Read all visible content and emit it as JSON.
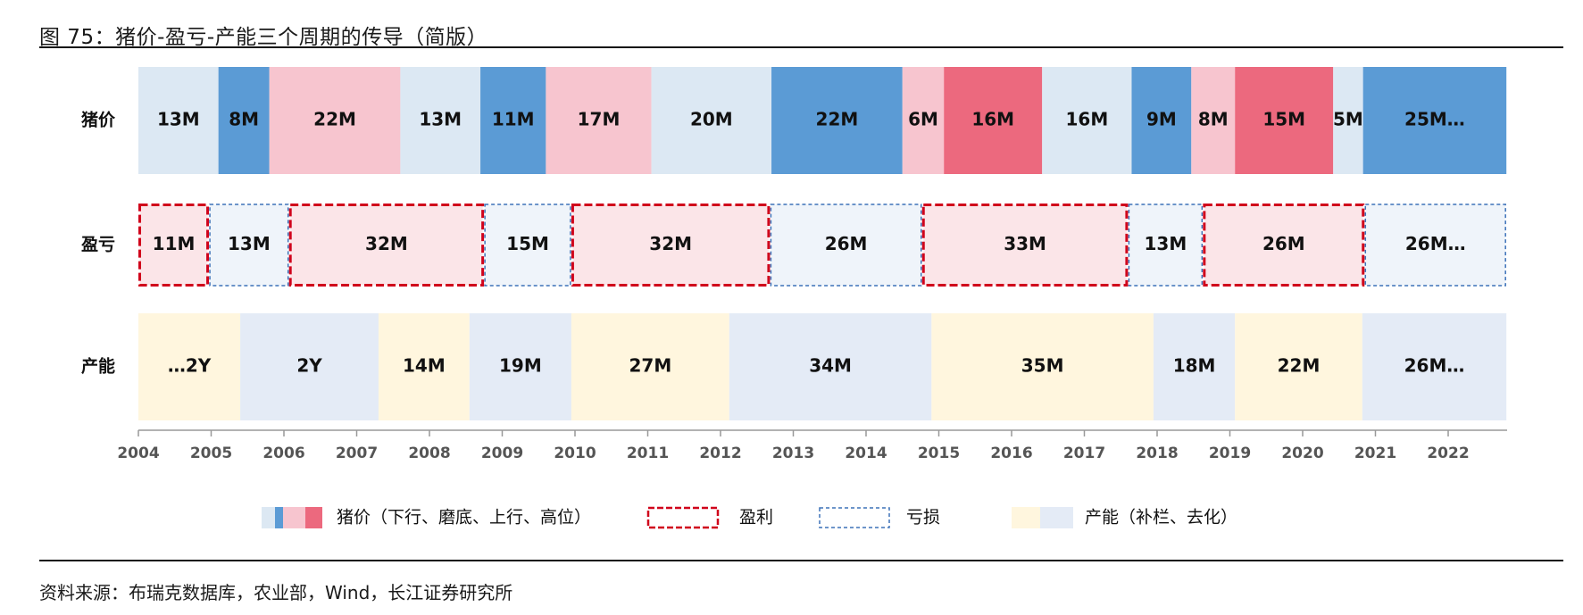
{
  "title": "图 75：猪价-盈亏-产能三个周期的传导（简版）",
  "source": "资料来源：布瑞克数据库，农业部，Wind，长江证券研究所",
  "colors": {
    "down": "#dce8f3",
    "bottom": "#5b9bd5",
    "up": "#f7c5cf",
    "high": "#ec697e",
    "profit_fill": "#fbe5e8",
    "profit_border": "#d0021b",
    "loss_fill": "#eff4fa",
    "loss_border": "#3d72b8",
    "cap_add": "#fff6de",
    "cap_cut": "#e4ebf6"
  },
  "chart_data": {
    "type": "timeline",
    "x_ticks": [
      "2004",
      "2005",
      "2006",
      "2007",
      "2008",
      "2009",
      "2010",
      "2011",
      "2012",
      "2013",
      "2014",
      "2015",
      "2016",
      "2017",
      "2018",
      "2019",
      "2020",
      "2021",
      "2022"
    ],
    "rows": [
      {
        "label": "猪价",
        "segments": [
          {
            "text": "13M",
            "start": 2004.0,
            "end": 2005.1,
            "phase": "down"
          },
          {
            "text": "8M",
            "start": 2005.1,
            "end": 2005.8,
            "phase": "bottom"
          },
          {
            "text": "22M",
            "start": 2005.8,
            "end": 2007.6,
            "phase": "up"
          },
          {
            "text": "13M",
            "start": 2007.6,
            "end": 2008.7,
            "phase": "down"
          },
          {
            "text": "11M",
            "start": 2008.7,
            "end": 2009.6,
            "phase": "bottom"
          },
          {
            "text": "17M",
            "start": 2009.6,
            "end": 2011.05,
            "phase": "up"
          },
          {
            "text": "20M",
            "start": 2011.05,
            "end": 2012.7,
            "phase": "down"
          },
          {
            "text": "22M",
            "start": 2012.7,
            "end": 2014.5,
            "phase": "bottom"
          },
          {
            "text": "6M",
            "start": 2014.5,
            "end": 2015.07,
            "phase": "up"
          },
          {
            "text": "16M",
            "start": 2015.07,
            "end": 2016.42,
            "phase": "high"
          },
          {
            "text": "16M",
            "start": 2016.42,
            "end": 2017.65,
            "phase": "down"
          },
          {
            "text": "9M",
            "start": 2017.65,
            "end": 2018.47,
            "phase": "bottom"
          },
          {
            "text": "8M",
            "start": 2018.47,
            "end": 2019.07,
            "phase": "up"
          },
          {
            "text": "15M",
            "start": 2019.07,
            "end": 2020.42,
            "phase": "high"
          },
          {
            "text": "5M",
            "start": 2020.42,
            "end": 2020.83,
            "phase": "down"
          },
          {
            "text": "25M…",
            "start": 2020.83,
            "end": 2022.8,
            "phase": "bottom"
          }
        ]
      },
      {
        "label": "盈亏",
        "segments": [
          {
            "text": "11M",
            "start": 2004.0,
            "end": 2004.97,
            "phase": "profit"
          },
          {
            "text": "13M",
            "start": 2004.97,
            "end": 2006.07,
            "phase": "loss"
          },
          {
            "text": "32M",
            "start": 2006.07,
            "end": 2008.75,
            "phase": "profit"
          },
          {
            "text": "15M",
            "start": 2008.75,
            "end": 2009.95,
            "phase": "loss"
          },
          {
            "text": "32M",
            "start": 2009.95,
            "end": 2012.68,
            "phase": "profit"
          },
          {
            "text": "26M",
            "start": 2012.68,
            "end": 2014.77,
            "phase": "loss"
          },
          {
            "text": "33M",
            "start": 2014.77,
            "end": 2017.6,
            "phase": "profit"
          },
          {
            "text": "13M",
            "start": 2017.6,
            "end": 2018.63,
            "phase": "loss"
          },
          {
            "text": "26M",
            "start": 2018.63,
            "end": 2020.85,
            "phase": "profit"
          },
          {
            "text": "26M…",
            "start": 2020.85,
            "end": 2022.8,
            "phase": "loss"
          }
        ]
      },
      {
        "label": "产能",
        "segments": [
          {
            "text": "…2Y",
            "start": 2004.0,
            "end": 2005.4,
            "phase": "cap_add"
          },
          {
            "text": "2Y",
            "start": 2005.4,
            "end": 2007.3,
            "phase": "cap_cut"
          },
          {
            "text": "14M",
            "start": 2007.3,
            "end": 2008.55,
            "phase": "cap_add"
          },
          {
            "text": "19M",
            "start": 2008.55,
            "end": 2009.95,
            "phase": "cap_cut"
          },
          {
            "text": "27M",
            "start": 2009.95,
            "end": 2012.12,
            "phase": "cap_add"
          },
          {
            "text": "34M",
            "start": 2012.12,
            "end": 2014.9,
            "phase": "cap_cut"
          },
          {
            "text": "35M",
            "start": 2014.9,
            "end": 2017.95,
            "phase": "cap_add"
          },
          {
            "text": "18M",
            "start": 2017.95,
            "end": 2019.07,
            "phase": "cap_cut"
          },
          {
            "text": "22M",
            "start": 2019.07,
            "end": 2020.82,
            "phase": "cap_add"
          },
          {
            "text": "26M…",
            "start": 2020.82,
            "end": 2022.8,
            "phase": "cap_cut"
          }
        ]
      }
    ],
    "legend": [
      {
        "label": "猪价（下行、磨底、上行、高位）",
        "kind": "price"
      },
      {
        "label": "盈利",
        "kind": "profit"
      },
      {
        "label": "亏损",
        "kind": "loss"
      },
      {
        "label": "产能（补栏、去化）",
        "kind": "capacity"
      }
    ]
  }
}
